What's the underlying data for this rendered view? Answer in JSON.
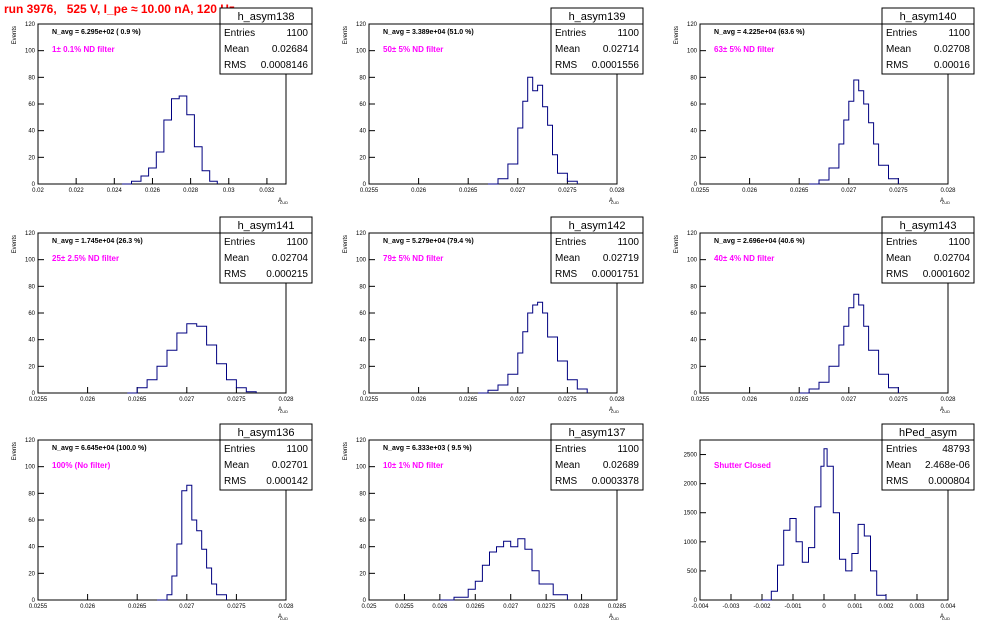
{
  "run_title": "run 3976,   525 V, I_pe ≈ 10.00 nA, 120 Hz",
  "colors": {
    "title": "#ff0000",
    "hist_line": "#000080",
    "annotation": "#ff00ff",
    "stats_text": "#000000"
  },
  "chart_data": [
    {
      "type": "histogram",
      "title": "h_asym138",
      "xlabel": "A",
      "xlabel_sub": "LUD",
      "ylabel": "Events",
      "xlim": [
        0.02,
        0.033
      ],
      "ylim": [
        0,
        120
      ],
      "xticks": [
        "0.02",
        "0.022",
        "0.024",
        "0.026",
        "0.028",
        "0.03",
        "0.032"
      ],
      "xtick_values": [
        0.02,
        0.022,
        0.024,
        0.026,
        0.028,
        0.03,
        0.032
      ],
      "yticks": [
        0,
        20,
        40,
        60,
        80,
        100,
        120
      ],
      "navg": "N_avg = 6.295e+02 ( 0.9 %)",
      "annotation": "1± 0.1% ND filter",
      "stats": [
        [
          "Entries",
          "1100"
        ],
        [
          "Mean",
          "0.02684"
        ],
        [
          "RMS",
          "0.0008146"
        ]
      ],
      "x": [
        0.0244,
        0.0249,
        0.0254,
        0.0258,
        0.0262,
        0.0266,
        0.027,
        0.0274,
        0.0278,
        0.0282,
        0.0286,
        0.029,
        0.0294
      ],
      "values": [
        0,
        2,
        6,
        12,
        24,
        48,
        64,
        66,
        52,
        28,
        10,
        2,
        0
      ]
    },
    {
      "type": "histogram",
      "title": "h_asym139",
      "xlabel": "A",
      "xlabel_sub": "LUD",
      "ylabel": "Events",
      "xlim": [
        0.0255,
        0.028
      ],
      "ylim": [
        0,
        120
      ],
      "xticks": [
        "0.0255",
        "0.026",
        "0.0265",
        "0.027",
        "0.0275",
        "0.028"
      ],
      "xtick_values": [
        0.0255,
        0.026,
        0.0265,
        0.027,
        0.0275,
        0.028
      ],
      "yticks": [
        0,
        20,
        40,
        60,
        80,
        100,
        120
      ],
      "navg": "N_avg = 3.389e+04 (51.0 %)",
      "annotation": "50± 5% ND filter",
      "stats": [
        [
          "Entries",
          "1100"
        ],
        [
          "Mean",
          "0.02714"
        ],
        [
          "RMS",
          "0.0001556"
        ]
      ],
      "x": [
        0.0267,
        0.0268,
        0.0269,
        0.027,
        0.02705,
        0.0271,
        0.02715,
        0.0272,
        0.02725,
        0.0273,
        0.02735,
        0.0274,
        0.0275,
        0.0276
      ],
      "values": [
        0,
        4,
        15,
        42,
        62,
        80,
        70,
        74,
        58,
        44,
        22,
        8,
        2,
        0
      ]
    },
    {
      "type": "histogram",
      "title": "h_asym140",
      "xlabel": "A",
      "xlabel_sub": "LUD",
      "ylabel": "Events",
      "xlim": [
        0.0255,
        0.028
      ],
      "ylim": [
        0,
        120
      ],
      "xticks": [
        "0.0255",
        "0.026",
        "0.0265",
        "0.027",
        "0.0275",
        "0.028"
      ],
      "xtick_values": [
        0.0255,
        0.026,
        0.0265,
        0.027,
        0.0275,
        0.028
      ],
      "yticks": [
        0,
        20,
        40,
        60,
        80,
        100,
        120
      ],
      "navg": "N_avg = 4.225e+04 (63.6 %)",
      "annotation": "63± 5% ND filter",
      "stats": [
        [
          "Entries",
          "1100"
        ],
        [
          "Mean",
          "0.02708"
        ],
        [
          "RMS",
          "0.00016"
        ]
      ],
      "x": [
        0.0266,
        0.0267,
        0.0268,
        0.0269,
        0.02695,
        0.027,
        0.02705,
        0.0271,
        0.02715,
        0.0272,
        0.02725,
        0.0273,
        0.0274,
        0.0275
      ],
      "values": [
        0,
        3,
        12,
        30,
        48,
        62,
        78,
        70,
        60,
        46,
        30,
        14,
        4,
        0
      ]
    },
    {
      "type": "histogram",
      "title": "h_asym141",
      "xlabel": "A",
      "xlabel_sub": "LUD",
      "ylabel": "Events",
      "xlim": [
        0.0255,
        0.028
      ],
      "ylim": [
        0,
        120
      ],
      "xticks": [
        "0.0255",
        "0.026",
        "0.0265",
        "0.027",
        "0.0275",
        "0.028"
      ],
      "xtick_values": [
        0.0255,
        0.026,
        0.0265,
        0.027,
        0.0275,
        0.028
      ],
      "yticks": [
        0,
        20,
        40,
        60,
        80,
        100,
        120
      ],
      "navg": "N_avg = 1.745e+04 (26.3 %)",
      "annotation": "25± 2.5% ND filter",
      "stats": [
        [
          "Entries",
          "1100"
        ],
        [
          "Mean",
          "0.02704"
        ],
        [
          "RMS",
          "0.000215"
        ]
      ],
      "x": [
        0.0264,
        0.0265,
        0.0266,
        0.0267,
        0.0268,
        0.0269,
        0.027,
        0.0271,
        0.0272,
        0.0273,
        0.0274,
        0.0275,
        0.0276,
        0.0277
      ],
      "values": [
        0,
        4,
        10,
        20,
        32,
        45,
        52,
        50,
        36,
        22,
        10,
        4,
        1,
        0
      ]
    },
    {
      "type": "histogram",
      "title": "h_asym142",
      "xlabel": "A",
      "xlabel_sub": "LUD",
      "ylabel": "Events",
      "xlim": [
        0.0255,
        0.028
      ],
      "ylim": [
        0,
        120
      ],
      "xticks": [
        "0.0255",
        "0.026",
        "0.0265",
        "0.027",
        "0.0275",
        "0.028"
      ],
      "xtick_values": [
        0.0255,
        0.026,
        0.0265,
        0.027,
        0.0275,
        0.028
      ],
      "yticks": [
        0,
        20,
        40,
        60,
        80,
        100,
        120
      ],
      "navg": "N_avg = 5.279e+04 (79.4 %)",
      "annotation": "79± 5% ND filter",
      "stats": [
        [
          "Entries",
          "1100"
        ],
        [
          "Mean",
          "0.02719"
        ],
        [
          "RMS",
          "0.0001751"
        ]
      ],
      "x": [
        0.0266,
        0.0267,
        0.0268,
        0.0269,
        0.027,
        0.02705,
        0.0271,
        0.02715,
        0.0272,
        0.02725,
        0.0273,
        0.0274,
        0.0275,
        0.0276,
        0.0277
      ],
      "values": [
        0,
        2,
        6,
        14,
        30,
        46,
        60,
        66,
        68,
        60,
        42,
        24,
        10,
        3,
        0
      ]
    },
    {
      "type": "histogram",
      "title": "h_asym143",
      "xlabel": "A",
      "xlabel_sub": "LUD",
      "ylabel": "Events",
      "xlim": [
        0.0255,
        0.028
      ],
      "ylim": [
        0,
        120
      ],
      "xticks": [
        "0.0255",
        "0.026",
        "0.0265",
        "0.027",
        "0.0275",
        "0.028"
      ],
      "xtick_values": [
        0.0255,
        0.026,
        0.0265,
        0.027,
        0.0275,
        0.028
      ],
      "yticks": [
        0,
        20,
        40,
        60,
        80,
        100,
        120
      ],
      "navg": "N_avg = 2.696e+04 (40.6 %)",
      "annotation": "40± 4% ND filter",
      "stats": [
        [
          "Entries",
          "1100"
        ],
        [
          "Mean",
          "0.02704"
        ],
        [
          "RMS",
          "0.0001602"
        ]
      ],
      "x": [
        0.0265,
        0.0266,
        0.0267,
        0.0268,
        0.0269,
        0.02695,
        0.027,
        0.02705,
        0.0271,
        0.02715,
        0.0272,
        0.0273,
        0.0274,
        0.0275
      ],
      "values": [
        0,
        3,
        8,
        20,
        36,
        50,
        64,
        74,
        66,
        50,
        32,
        14,
        4,
        0
      ]
    },
    {
      "type": "histogram",
      "title": "h_asym136",
      "xlabel": "A",
      "xlabel_sub": "LUD",
      "ylabel": "Events",
      "xlim": [
        0.0255,
        0.028
      ],
      "ylim": [
        0,
        120
      ],
      "xticks": [
        "0.0255",
        "0.026",
        "0.0265",
        "0.027",
        "0.0275",
        "0.028"
      ],
      "xtick_values": [
        0.0255,
        0.026,
        0.0265,
        0.027,
        0.0275,
        0.028
      ],
      "yticks": [
        0,
        20,
        40,
        60,
        80,
        100,
        120
      ],
      "navg": "N_avg = 6.645e+04 (100.0 %)",
      "annotation": "100% (No filter)",
      "stats": [
        [
          "Entries",
          "1100"
        ],
        [
          "Mean",
          "0.02701"
        ],
        [
          "RMS",
          "0.000142"
        ]
      ],
      "x": [
        0.0267,
        0.0268,
        0.02685,
        0.0269,
        0.02695,
        0.027,
        0.02705,
        0.0271,
        0.02715,
        0.0272,
        0.02725,
        0.0273,
        0.0274
      ],
      "values": [
        0,
        4,
        18,
        42,
        82,
        86,
        60,
        52,
        38,
        24,
        12,
        4,
        0
      ]
    },
    {
      "type": "histogram",
      "title": "h_asym137",
      "xlabel": "A",
      "xlabel_sub": "LUD",
      "ylabel": "Events",
      "xlim": [
        0.025,
        0.0285
      ],
      "ylim": [
        0,
        120
      ],
      "xticks": [
        "0.025",
        "0.0255",
        "0.026",
        "0.0265",
        "0.027",
        "0.0275",
        "0.028",
        "0.0285"
      ],
      "xtick_values": [
        0.025,
        0.0255,
        0.026,
        0.0265,
        0.027,
        0.0275,
        0.028,
        0.0285
      ],
      "yticks": [
        0,
        20,
        40,
        60,
        80,
        100,
        120
      ],
      "navg": "N_avg = 6.333e+03 ( 9.5 %)",
      "annotation": "10± 1% ND filter",
      "stats": [
        [
          "Entries",
          "1100"
        ],
        [
          "Mean",
          "0.02689"
        ],
        [
          "RMS",
          "0.0003378"
        ]
      ],
      "x": [
        0.026,
        0.0262,
        0.0264,
        0.0265,
        0.0266,
        0.0267,
        0.0268,
        0.0269,
        0.027,
        0.0271,
        0.0272,
        0.0273,
        0.0274,
        0.0276,
        0.0278
      ],
      "values": [
        0,
        2,
        8,
        14,
        26,
        36,
        40,
        44,
        40,
        46,
        38,
        22,
        12,
        4,
        0
      ]
    },
    {
      "type": "histogram",
      "title": "hPed_asym",
      "xlabel": "A",
      "xlabel_sub": "LUD",
      "ylabel": "",
      "xlim": [
        -0.004,
        0.004
      ],
      "ylim": [
        0,
        2750
      ],
      "xticks": [
        "-0.004",
        "-0.003",
        "-0.002",
        "-0.001",
        "0",
        "0.001",
        "0.002",
        "0.003",
        "0.004"
      ],
      "xtick_values": [
        -0.004,
        -0.003,
        -0.002,
        -0.001,
        0,
        0.001,
        0.002,
        0.003,
        0.004
      ],
      "yticks": [
        0,
        500,
        1000,
        1500,
        2000,
        2500
      ],
      "navg": "",
      "annotation": "Shutter Closed",
      "stats": [
        [
          "Entries",
          "48793"
        ],
        [
          "Mean",
          "2.468e-06"
        ],
        [
          "RMS",
          "0.000804"
        ]
      ],
      "x": [
        -0.002,
        -0.0017,
        -0.0015,
        -0.0013,
        -0.0011,
        -0.0009,
        -0.0007,
        -0.0005,
        -0.0003,
        -0.0001,
        0.0,
        0.0001,
        0.0003,
        0.0005,
        0.0007,
        0.0009,
        0.0011,
        0.0013,
        0.0015,
        0.0017,
        0.002
      ],
      "values": [
        0,
        150,
        600,
        1200,
        1400,
        1000,
        650,
        900,
        1600,
        2300,
        2600,
        2300,
        1500,
        700,
        500,
        800,
        1300,
        1100,
        500,
        80,
        0
      ]
    }
  ]
}
